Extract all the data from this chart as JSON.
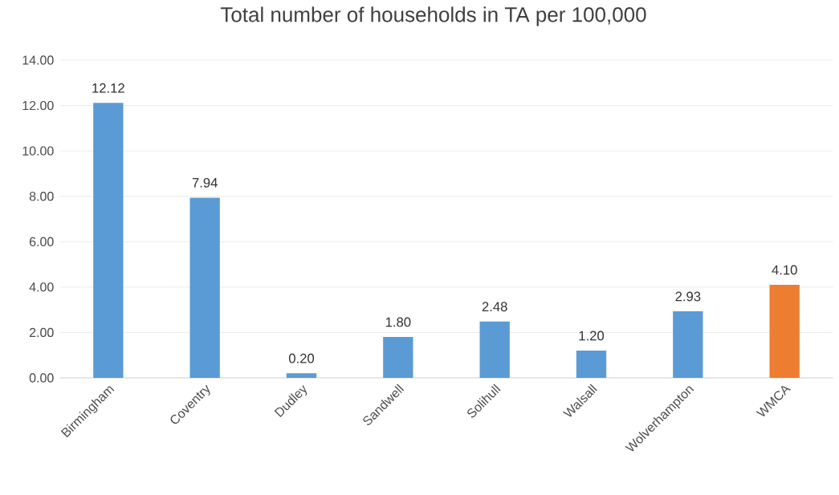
{
  "chart_data": {
    "type": "bar",
    "title": "Total number of households in TA per 100,000",
    "categories": [
      "Birmingham",
      "Coventry",
      "Dudley",
      "Sandwell",
      "Solihull",
      "Walsall",
      "Wolverhampton",
      "WMCA"
    ],
    "values": [
      12.12,
      7.94,
      0.2,
      1.8,
      2.48,
      1.2,
      2.93,
      4.1
    ],
    "value_labels": [
      "12.12",
      "7.94",
      "0.20",
      "1.80",
      "2.48",
      "1.20",
      "2.93",
      "4.10"
    ],
    "colors": [
      "#5b9bd5",
      "#5b9bd5",
      "#5b9bd5",
      "#5b9bd5",
      "#5b9bd5",
      "#5b9bd5",
      "#5b9bd5",
      "#ed7d31"
    ],
    "ylim": [
      0,
      14
    ],
    "yticks": [
      {
        "value": 0,
        "label": "0.00"
      },
      {
        "value": 2,
        "label": "2.00"
      },
      {
        "value": 4,
        "label": "4.00"
      },
      {
        "value": 6,
        "label": "6.00"
      },
      {
        "value": 8,
        "label": "8.00"
      },
      {
        "value": 10,
        "label": "10.00"
      },
      {
        "value": 12,
        "label": "12.00"
      },
      {
        "value": 14,
        "label": "14.00"
      }
    ],
    "grid": "y"
  }
}
